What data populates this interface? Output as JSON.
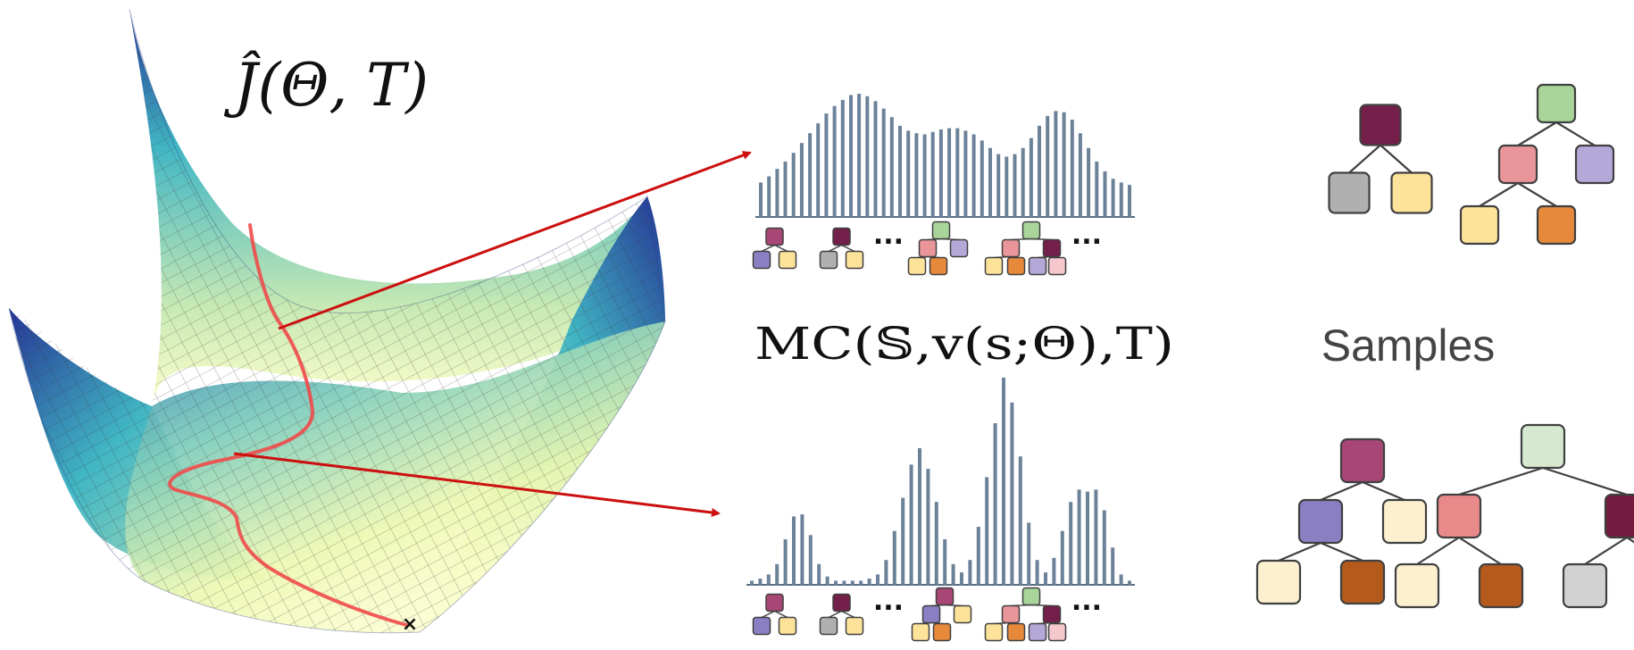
{
  "landscape": {
    "title": "Ĵ(Θ, T)",
    "end_marker": "×"
  },
  "mc_label": "MC(𝕊,v(s;Θ),T)",
  "samples_label": "Samples",
  "ellipsis": "...",
  "histograms": [
    {
      "name": "top",
      "values": [
        0.28,
        0.33,
        0.39,
        0.45,
        0.52,
        0.6,
        0.68,
        0.76,
        0.84,
        0.9,
        0.95,
        0.99,
        1.0,
        0.98,
        0.94,
        0.88,
        0.81,
        0.74,
        0.7,
        0.68,
        0.67,
        0.69,
        0.71,
        0.72,
        0.72,
        0.7,
        0.67,
        0.62,
        0.56,
        0.51,
        0.49,
        0.51,
        0.56,
        0.64,
        0.74,
        0.82,
        0.86,
        0.85,
        0.79,
        0.68,
        0.56,
        0.45,
        0.37,
        0.31,
        0.28,
        0.26
      ]
    },
    {
      "name": "bottom",
      "values": [
        0.02,
        0.03,
        0.05,
        0.1,
        0.22,
        0.33,
        0.34,
        0.24,
        0.1,
        0.04,
        0.02,
        0.02,
        0.02,
        0.02,
        0.03,
        0.05,
        0.12,
        0.26,
        0.42,
        0.58,
        0.66,
        0.56,
        0.4,
        0.22,
        0.1,
        0.06,
        0.12,
        0.28,
        0.52,
        0.78,
        1.0,
        0.88,
        0.62,
        0.3,
        0.12,
        0.06,
        0.13,
        0.26,
        0.4,
        0.46,
        0.45,
        0.46,
        0.36,
        0.18,
        0.05,
        0.02
      ]
    }
  ],
  "colors": {
    "surface_high": "#253494",
    "surface_mid": "#41b6c4",
    "surface_low": "#ffffcc",
    "path": "#f04a4a",
    "arrow": "#cc1010",
    "bar": "#6b8299",
    "node_stroke": "#404040",
    "dark_magenta": "#731f4a",
    "sage": "#a9d49a",
    "pink": "#e9959a",
    "lavender": "#b4a8d8",
    "grey": "#b0b0b0",
    "light_yellow": "#fde29a",
    "orange": "#e7893a",
    "rose_magenta": "#a84676",
    "light_sage": "#d7e8d0",
    "purple": "#8a7fc3",
    "cream": "#fcf0cf",
    "rust": "#b45a1d",
    "salmon": "#e98a8a",
    "wine": "#741c3f",
    "silver": "#d2d2d2",
    "baby_pink": "#f4c8cc"
  },
  "trees": {
    "top_right": [
      {
        "nodes": [
          {
            "id": "r",
            "color": "dark_magenta",
            "x": 0.5,
            "y": 0
          },
          {
            "id": "a",
            "color": "grey",
            "x": 0.0,
            "y": 1
          },
          {
            "id": "b",
            "color": "light_yellow",
            "x": 1.0,
            "y": 1
          }
        ],
        "edges": [
          [
            "r",
            "a"
          ],
          [
            "r",
            "b"
          ]
        ]
      },
      {
        "nodes": [
          {
            "id": "r",
            "color": "sage",
            "x": 0.5,
            "y": 0
          },
          {
            "id": "a",
            "color": "pink",
            "x": 0.0,
            "y": 1
          },
          {
            "id": "b",
            "color": "lavender",
            "x": 1.0,
            "y": 1
          },
          {
            "id": "c",
            "color": "light_yellow",
            "x": -0.5,
            "y": 2
          },
          {
            "id": "d",
            "color": "orange",
            "x": 0.5,
            "y": 2
          }
        ],
        "edges": [
          [
            "r",
            "a"
          ],
          [
            "r",
            "b"
          ],
          [
            "a",
            "c"
          ],
          [
            "a",
            "d"
          ]
        ]
      }
    ],
    "bottom_right": [
      {
        "nodes": [
          {
            "id": "r",
            "color": "rose_magenta",
            "x": 0.5,
            "y": 0
          },
          {
            "id": "a",
            "color": "purple",
            "x": 0.0,
            "y": 1
          },
          {
            "id": "b",
            "color": "cream",
            "x": 1.0,
            "y": 1
          },
          {
            "id": "c",
            "color": "cream",
            "x": -0.5,
            "y": 2
          },
          {
            "id": "d",
            "color": "rust",
            "x": 0.5,
            "y": 2
          }
        ],
        "edges": [
          [
            "r",
            "a"
          ],
          [
            "r",
            "b"
          ],
          [
            "a",
            "c"
          ],
          [
            "a",
            "d"
          ]
        ]
      },
      {
        "nodes": [
          {
            "id": "r",
            "color": "light_sage",
            "x": 0.5,
            "y": 0
          },
          {
            "id": "a",
            "color": "salmon",
            "x": -0.5,
            "y": 1
          },
          {
            "id": "b",
            "color": "wine",
            "x": 1.5,
            "y": 1
          },
          {
            "id": "c",
            "color": "cream",
            "x": -1.0,
            "y": 2
          },
          {
            "id": "d",
            "color": "rust",
            "x": 0.0,
            "y": 2
          },
          {
            "id": "e",
            "color": "silver",
            "x": 1.0,
            "y": 2
          },
          {
            "id": "f",
            "color": "baby_pink",
            "x": 2.0,
            "y": 2
          }
        ],
        "edges": [
          [
            "r",
            "a"
          ],
          [
            "r",
            "b"
          ],
          [
            "a",
            "c"
          ],
          [
            "a",
            "d"
          ],
          [
            "b",
            "e"
          ],
          [
            "b",
            "f"
          ]
        ]
      }
    ],
    "mini_top": [
      {
        "colors": [
          "rose_magenta",
          "purple",
          "light_yellow"
        ]
      },
      {
        "colors": [
          "dark_magenta",
          "grey",
          "light_yellow"
        ]
      },
      {
        "colors": [
          "sage",
          "pink",
          "lavender",
          "light_yellow",
          "orange"
        ]
      },
      {
        "colors": [
          "sage",
          "pink",
          "dark_magenta",
          "light_yellow",
          "orange",
          "lavender",
          "baby_pink"
        ]
      }
    ],
    "mini_bottom": [
      {
        "colors": [
          "rose_magenta",
          "purple",
          "light_yellow"
        ]
      },
      {
        "colors": [
          "dark_magenta",
          "grey",
          "light_yellow"
        ]
      },
      {
        "colors": [
          "rose_magenta",
          "purple",
          "light_yellow",
          "light_yellow",
          "orange"
        ]
      },
      {
        "colors": [
          "sage",
          "pink",
          "dark_magenta",
          "light_yellow",
          "orange",
          "lavender",
          "baby_pink"
        ]
      }
    ]
  }
}
